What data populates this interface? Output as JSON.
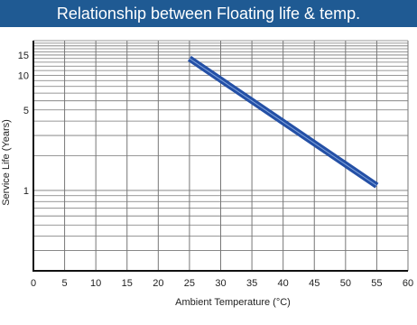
{
  "chart_data": {
    "type": "line",
    "title": "Relationship between Floating life & temp.",
    "xlabel": "Ambient Temperature (°C)",
    "ylabel": "Service Life (Years)",
    "xlim": [
      0,
      60
    ],
    "ylim": [
      0.2,
      20
    ],
    "y_scale": "log",
    "x_ticks": [
      0,
      5,
      10,
      15,
      20,
      25,
      30,
      35,
      40,
      45,
      50,
      55,
      60
    ],
    "y_ticks": [
      1,
      5,
      10,
      15
    ],
    "grid": true,
    "series": [
      {
        "x": [
          25,
          55
        ],
        "y": [
          14,
          1.1
        ]
      }
    ],
    "colors": {
      "line": "#2450a6",
      "title_bg": "#1f5a93",
      "grid": "#777777"
    }
  }
}
